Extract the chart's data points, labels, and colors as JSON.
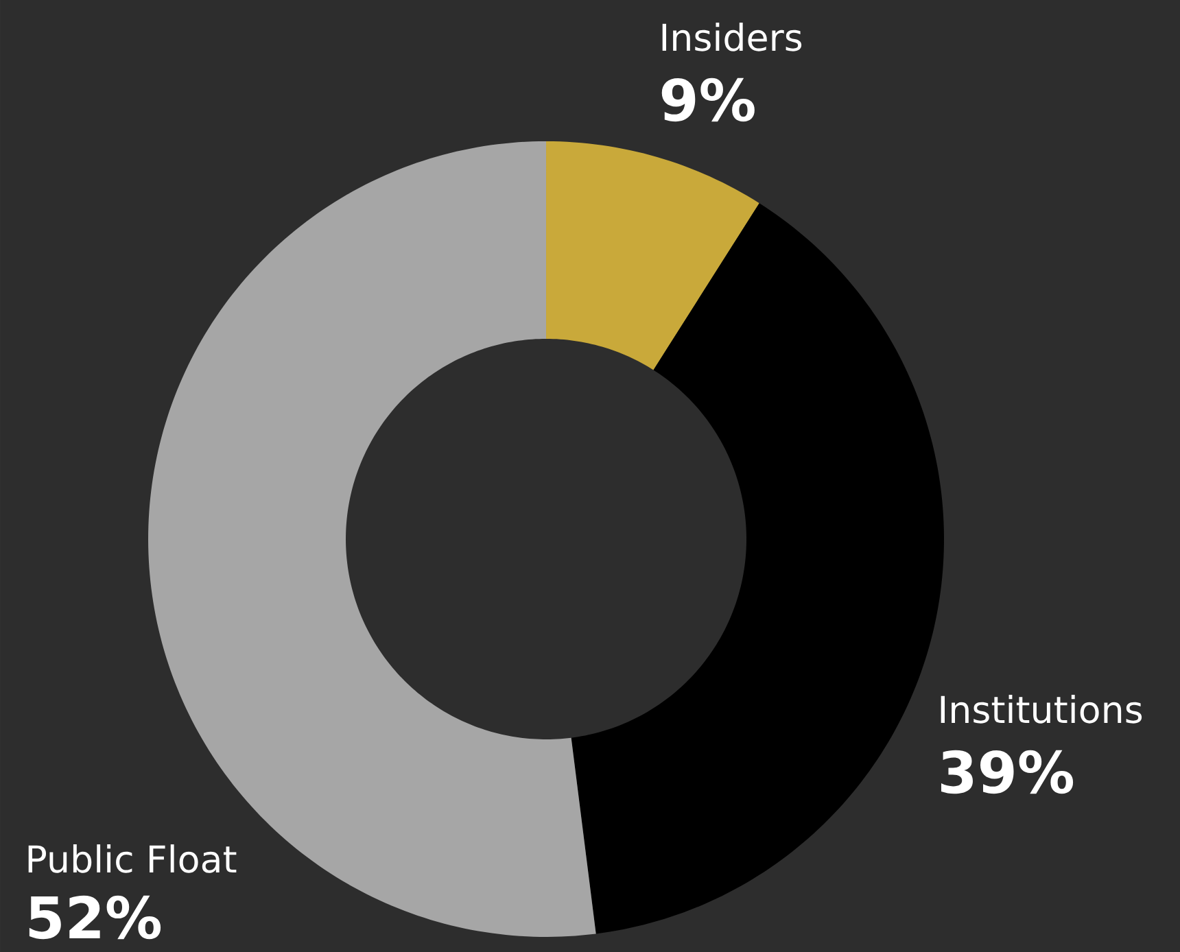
{
  "chart_data": {
    "type": "donut",
    "categories": [
      "Insiders",
      "Institutions",
      "Public Float"
    ],
    "values": [
      9,
      39,
      52
    ],
    "colors": [
      "#c9a93a",
      "#000000",
      "#a6a6a6"
    ],
    "value_labels": [
      "9%",
      "39%",
      "52%"
    ]
  }
}
